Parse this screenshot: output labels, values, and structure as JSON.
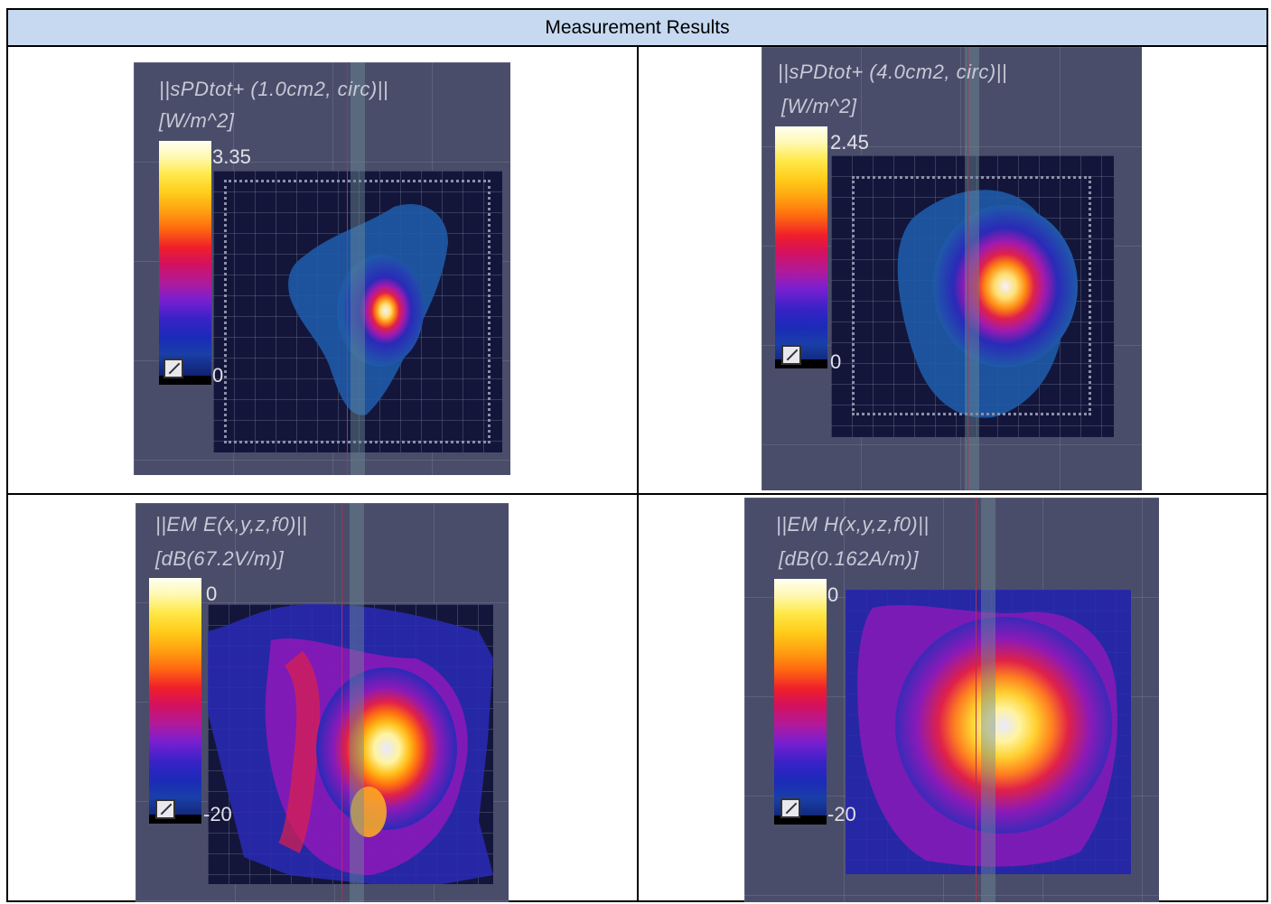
{
  "table": {
    "header": "Measurement Results"
  },
  "plots": [
    {
      "title_line1": "||sPDtot+ (1.0cm2, circ)||",
      "title_line2": "[W/m^2]",
      "max_label": "3.35",
      "min_label": "0"
    },
    {
      "title_line1": "||sPDtot+ (4.0cm2, circ)||",
      "title_line2": "[W/m^2]",
      "max_label": "2.45",
      "min_label": "0"
    },
    {
      "title_line1": "||EM E(x,y,z,f0)||",
      "title_line2": "[dB(67.2V/m)]",
      "max_label": "0",
      "min_label": "-20"
    },
    {
      "title_line1": "||EM H(x,y,z,f0)||",
      "title_line2": "[dB(0.162A/m)]",
      "max_label": "0",
      "min_label": "-20"
    }
  ],
  "colors": {
    "header_bg": "#c6d9f1",
    "plot_bg": "#4a4d6a",
    "scan_bg": "#13163a"
  },
  "icons": [
    "scale-toggle-icon"
  ]
}
